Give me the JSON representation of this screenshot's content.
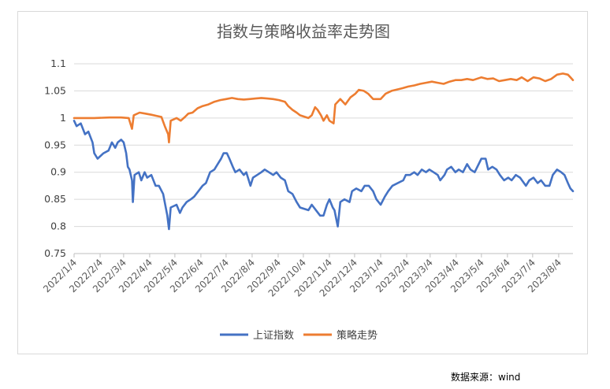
{
  "source_note": "数据来源：wind",
  "chart_data": {
    "type": "line",
    "title": "指数与策略收益率走势图",
    "xlabel": "",
    "ylabel": "",
    "ylim": [
      0.75,
      1.1
    ],
    "yticks": [
      "0.75",
      "0.8",
      "0.85",
      "0.9",
      "0.95",
      "1",
      "1.05",
      "1.1"
    ],
    "x_ticks": [
      "2022/1/4",
      "2022/2/4",
      "2022/3/4",
      "2022/4/4",
      "2022/5/4",
      "2022/6/4",
      "2022/7/4",
      "2022/8/4",
      "2022/9/4",
      "2022/10/4",
      "2022/11/4",
      "2022/12/4",
      "2023/1/4",
      "2023/2/4",
      "2023/3/4",
      "2023/4/4",
      "2023/5/4",
      "2023/6/4",
      "2023/7/4",
      "2023/8/4"
    ],
    "grid": "horizontal",
    "legend_position": "bottom",
    "series": [
      {
        "name": "上证指数",
        "color": "#4472C4",
        "points": [
          [
            "2022/1/4",
            0.995
          ],
          [
            "2022/1/7",
            0.985
          ],
          [
            "2022/1/12",
            0.99
          ],
          [
            "2022/1/17",
            0.97
          ],
          [
            "2022/1/21",
            0.975
          ],
          [
            "2022/1/26",
            0.955
          ],
          [
            "2022/1/28",
            0.935
          ],
          [
            "2022/2/1",
            0.925
          ],
          [
            "2022/2/8",
            0.935
          ],
          [
            "2022/2/14",
            0.94
          ],
          [
            "2022/2/18",
            0.955
          ],
          [
            "2022/2/22",
            0.945
          ],
          [
            "2022/2/25",
            0.955
          ],
          [
            "2022/3/1",
            0.96
          ],
          [
            "2022/3/4",
            0.955
          ],
          [
            "2022/3/7",
            0.935
          ],
          [
            "2022/3/9",
            0.91
          ],
          [
            "2022/3/11",
            0.905
          ],
          [
            "2022/3/14",
            0.885
          ],
          [
            "2022/3/15",
            0.845
          ],
          [
            "2022/3/17",
            0.895
          ],
          [
            "2022/3/22",
            0.9
          ],
          [
            "2022/3/25",
            0.885
          ],
          [
            "2022/3/29",
            0.9
          ],
          [
            "2022/4/1",
            0.89
          ],
          [
            "2022/4/6",
            0.895
          ],
          [
            "2022/4/11",
            0.875
          ],
          [
            "2022/4/15",
            0.875
          ],
          [
            "2022/4/20",
            0.86
          ],
          [
            "2022/4/25",
            0.82
          ],
          [
            "2022/4/27",
            0.795
          ],
          [
            "2022/4/29",
            0.835
          ],
          [
            "2022/5/6",
            0.84
          ],
          [
            "2022/5/10",
            0.825
          ],
          [
            "2022/5/13",
            0.835
          ],
          [
            "2022/5/18",
            0.845
          ],
          [
            "2022/5/23",
            0.85
          ],
          [
            "2022/5/27",
            0.855
          ],
          [
            "2022/6/1",
            0.865
          ],
          [
            "2022/6/6",
            0.875
          ],
          [
            "2022/6/10",
            0.88
          ],
          [
            "2022/6/15",
            0.9
          ],
          [
            "2022/6/20",
            0.905
          ],
          [
            "2022/6/24",
            0.915
          ],
          [
            "2022/6/28",
            0.925
          ],
          [
            "2022/7/1",
            0.935
          ],
          [
            "2022/7/5",
            0.935
          ],
          [
            "2022/7/8",
            0.925
          ],
          [
            "2022/7/12",
            0.91
          ],
          [
            "2022/7/15",
            0.9
          ],
          [
            "2022/7/20",
            0.905
          ],
          [
            "2022/7/25",
            0.895
          ],
          [
            "2022/7/28",
            0.9
          ],
          [
            "2022/8/2",
            0.875
          ],
          [
            "2022/8/5",
            0.89
          ],
          [
            "2022/8/10",
            0.895
          ],
          [
            "2022/8/15",
            0.9
          ],
          [
            "2022/8/19",
            0.905
          ],
          [
            "2022/8/24",
            0.9
          ],
          [
            "2022/8/29",
            0.895
          ],
          [
            "2022/9/2",
            0.9
          ],
          [
            "2022/9/7",
            0.89
          ],
          [
            "2022/9/12",
            0.885
          ],
          [
            "2022/9/16",
            0.865
          ],
          [
            "2022/9/21",
            0.86
          ],
          [
            "2022/9/26",
            0.845
          ],
          [
            "2022/9/30",
            0.835
          ],
          [
            "2022/10/10",
            0.83
          ],
          [
            "2022/10/14",
            0.84
          ],
          [
            "2022/10/19",
            0.83
          ],
          [
            "2022/10/24",
            0.82
          ],
          [
            "2022/10/28",
            0.82
          ],
          [
            "2022/11/1",
            0.84
          ],
          [
            "2022/11/4",
            0.85
          ],
          [
            "2022/11/8",
            0.835
          ],
          [
            "2022/11/10",
            0.83
          ],
          [
            "2022/11/14",
            0.8
          ],
          [
            "2022/11/17",
            0.845
          ],
          [
            "2022/11/22",
            0.85
          ],
          [
            "2022/11/28",
            0.845
          ],
          [
            "2022/12/1",
            0.865
          ],
          [
            "2022/12/6",
            0.87
          ],
          [
            "2022/12/12",
            0.865
          ],
          [
            "2022/12/16",
            0.875
          ],
          [
            "2022/12/21",
            0.875
          ],
          [
            "2022/12/26",
            0.865
          ],
          [
            "2022/12/30",
            0.85
          ],
          [
            "2023/1/4",
            0.84
          ],
          [
            "2023/1/9",
            0.855
          ],
          [
            "2023/1/13",
            0.865
          ],
          [
            "2023/1/18",
            0.875
          ],
          [
            "2023/1/31",
            0.885
          ],
          [
            "2023/2/3",
            0.895
          ],
          [
            "2023/2/8",
            0.895
          ],
          [
            "2023/2/13",
            0.9
          ],
          [
            "2023/2/17",
            0.895
          ],
          [
            "2023/2/22",
            0.905
          ],
          [
            "2023/2/27",
            0.9
          ],
          [
            "2023/3/3",
            0.905
          ],
          [
            "2023/3/8",
            0.9
          ],
          [
            "2023/3/13",
            0.895
          ],
          [
            "2023/3/16",
            0.885
          ],
          [
            "2023/3/21",
            0.895
          ],
          [
            "2023/3/24",
            0.905
          ],
          [
            "2023/3/29",
            0.91
          ],
          [
            "2023/4/3",
            0.9
          ],
          [
            "2023/4/7",
            0.905
          ],
          [
            "2023/4/12",
            0.9
          ],
          [
            "2023/4/17",
            0.915
          ],
          [
            "2023/4/21",
            0.905
          ],
          [
            "2023/4/26",
            0.9
          ],
          [
            "2023/5/4",
            0.925
          ],
          [
            "2023/5/9",
            0.925
          ],
          [
            "2023/5/12",
            0.905
          ],
          [
            "2023/5/17",
            0.91
          ],
          [
            "2023/5/22",
            0.905
          ],
          [
            "2023/5/26",
            0.895
          ],
          [
            "2023/5/31",
            0.885
          ],
          [
            "2023/6/5",
            0.89
          ],
          [
            "2023/6/9",
            0.885
          ],
          [
            "2023/6/14",
            0.895
          ],
          [
            "2023/6/19",
            0.89
          ],
          [
            "2023/6/26",
            0.875
          ],
          [
            "2023/6/30",
            0.885
          ],
          [
            "2023/7/5",
            0.89
          ],
          [
            "2023/7/10",
            0.88
          ],
          [
            "2023/7/14",
            0.885
          ],
          [
            "2023/7/19",
            0.875
          ],
          [
            "2023/7/24",
            0.875
          ],
          [
            "2023/7/28",
            0.895
          ],
          [
            "2023/8/2",
            0.905
          ],
          [
            "2023/8/7",
            0.9
          ],
          [
            "2023/8/11",
            0.895
          ],
          [
            "2023/8/15",
            0.88
          ],
          [
            "2023/8/18",
            0.87
          ],
          [
            "2023/8/21",
            0.865
          ]
        ]
      },
      {
        "name": "策略走势",
        "color": "#ED7D31",
        "points": [
          [
            "2022/1/4",
            1.0
          ],
          [
            "2022/1/14",
            1.0
          ],
          [
            "2022/1/28",
            1.0
          ],
          [
            "2022/2/15",
            1.001
          ],
          [
            "2022/3/1",
            1.001
          ],
          [
            "2022/3/10",
            1.0
          ],
          [
            "2022/3/14",
            0.98
          ],
          [
            "2022/3/16",
            1.005
          ],
          [
            "2022/3/23",
            1.01
          ],
          [
            "2022/3/30",
            1.008
          ],
          [
            "2022/4/6",
            1.006
          ],
          [
            "2022/4/12",
            1.004
          ],
          [
            "2022/4/18",
            1.002
          ],
          [
            "2022/4/22",
            0.985
          ],
          [
            "2022/4/26",
            0.97
          ],
          [
            "2022/4/27",
            0.955
          ],
          [
            "2022/4/29",
            0.995
          ],
          [
            "2022/5/6",
            1.0
          ],
          [
            "2022/5/11",
            0.995
          ],
          [
            "2022/5/16",
            1.002
          ],
          [
            "2022/5/20",
            1.008
          ],
          [
            "2022/5/25",
            1.01
          ],
          [
            "2022/5/31",
            1.018
          ],
          [
            "2022/6/6",
            1.022
          ],
          [
            "2022/6/13",
            1.025
          ],
          [
            "2022/6/20",
            1.03
          ],
          [
            "2022/6/27",
            1.033
          ],
          [
            "2022/7/4",
            1.035
          ],
          [
            "2022/7/11",
            1.037
          ],
          [
            "2022/7/18",
            1.035
          ],
          [
            "2022/7/25",
            1.034
          ],
          [
            "2022/8/1",
            1.035
          ],
          [
            "2022/8/8",
            1.036
          ],
          [
            "2022/8/15",
            1.037
          ],
          [
            "2022/8/22",
            1.036
          ],
          [
            "2022/8/29",
            1.035
          ],
          [
            "2022/9/5",
            1.033
          ],
          [
            "2022/9/12",
            1.03
          ],
          [
            "2022/9/16",
            1.022
          ],
          [
            "2022/9/21",
            1.015
          ],
          [
            "2022/9/26",
            1.01
          ],
          [
            "2022/9/30",
            1.005
          ],
          [
            "2022/10/10",
            1.0
          ],
          [
            "2022/10/14",
            1.005
          ],
          [
            "2022/10/18",
            1.02
          ],
          [
            "2022/10/21",
            1.015
          ],
          [
            "2022/10/25",
            1.005
          ],
          [
            "2022/10/28",
            0.995
          ],
          [
            "2022/11/1",
            1.005
          ],
          [
            "2022/11/4",
            0.995
          ],
          [
            "2022/11/9",
            0.99
          ],
          [
            "2022/11/11",
            1.025
          ],
          [
            "2022/11/17",
            1.035
          ],
          [
            "2022/11/23",
            1.025
          ],
          [
            "2022/11/29",
            1.038
          ],
          [
            "2022/12/5",
            1.045
          ],
          [
            "2022/12/9",
            1.052
          ],
          [
            "2022/12/15",
            1.05
          ],
          [
            "2022/12/20",
            1.045
          ],
          [
            "2022/12/26",
            1.035
          ],
          [
            "2023/1/4",
            1.035
          ],
          [
            "2023/1/10",
            1.045
          ],
          [
            "2023/1/17",
            1.05
          ],
          [
            "2023/1/30",
            1.055
          ],
          [
            "2023/2/6",
            1.058
          ],
          [
            "2023/2/13",
            1.06
          ],
          [
            "2023/2/20",
            1.063
          ],
          [
            "2023/2/27",
            1.065
          ],
          [
            "2023/3/6",
            1.067
          ],
          [
            "2023/3/13",
            1.065
          ],
          [
            "2023/3/20",
            1.063
          ],
          [
            "2023/3/27",
            1.067
          ],
          [
            "2023/4/3",
            1.07
          ],
          [
            "2023/4/10",
            1.07
          ],
          [
            "2023/4/17",
            1.072
          ],
          [
            "2023/4/24",
            1.07
          ],
          [
            "2023/5/4",
            1.075
          ],
          [
            "2023/5/11",
            1.072
          ],
          [
            "2023/5/18",
            1.073
          ],
          [
            "2023/5/25",
            1.068
          ],
          [
            "2023/6/1",
            1.07
          ],
          [
            "2023/6/8",
            1.072
          ],
          [
            "2023/6/15",
            1.07
          ],
          [
            "2023/6/21",
            1.075
          ],
          [
            "2023/6/28",
            1.068
          ],
          [
            "2023/7/5",
            1.075
          ],
          [
            "2023/7/12",
            1.073
          ],
          [
            "2023/7/19",
            1.068
          ],
          [
            "2023/7/26",
            1.072
          ],
          [
            "2023/8/2",
            1.08
          ],
          [
            "2023/8/9",
            1.082
          ],
          [
            "2023/8/15",
            1.08
          ],
          [
            "2023/8/18",
            1.075
          ],
          [
            "2023/8/21",
            1.07
          ]
        ]
      }
    ]
  }
}
